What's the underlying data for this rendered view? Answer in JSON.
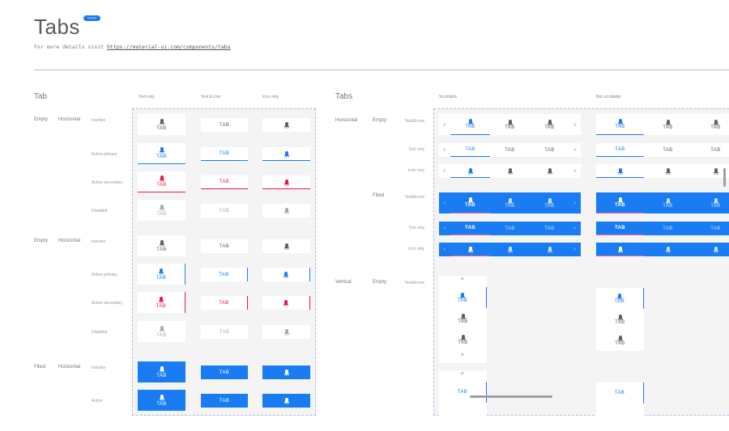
{
  "header": {
    "title": "Tabs",
    "badge": "Variants",
    "details_prefix": "For more details visit",
    "details_link": "https://material-ui.com/components/tabs"
  },
  "tab_label": "TAB",
  "colors": {
    "primary": "#1a7cf2",
    "secondary": "#e8174b",
    "inactive": "#616161",
    "disabled": "#ababab",
    "filled_indicator": "#f06292"
  },
  "tab_section": {
    "title": "Tab",
    "columns": [
      "Text only",
      "Text & icon",
      "Icon only"
    ],
    "groups": [
      {
        "style": "Empty",
        "orientation": "Horizontal",
        "states": [
          "Inactive",
          "Active primary",
          "Active secondary",
          "Disabled"
        ]
      },
      {
        "style": "Empty",
        "orientation": "Horizontal",
        "states": [
          "Inactive",
          "Active primary",
          "Active secondary",
          "Disabled"
        ]
      },
      {
        "style": "Filled",
        "orientation": "Horizontal",
        "states": [
          "Inactive",
          "Active"
        ]
      }
    ]
  },
  "tabs_section": {
    "title": "Tabs",
    "columns": [
      "Scrollable",
      "Not scrollable"
    ],
    "rows": [
      {
        "orientation": "Horizontal",
        "style": "Empty",
        "content": "Text&Icons"
      },
      {
        "content": "Text only"
      },
      {
        "content": "Icon only"
      },
      {
        "style": "Filled",
        "content": "Text&Icons"
      },
      {
        "content": "Text only"
      },
      {
        "content": "Icon only"
      },
      {
        "orientation": "Vertical",
        "style": "Empty",
        "content": "Text&Icons"
      }
    ],
    "arrow_left": "‹",
    "arrow_right": "›",
    "arrow_up": "˄",
    "arrow_down": "˅"
  }
}
